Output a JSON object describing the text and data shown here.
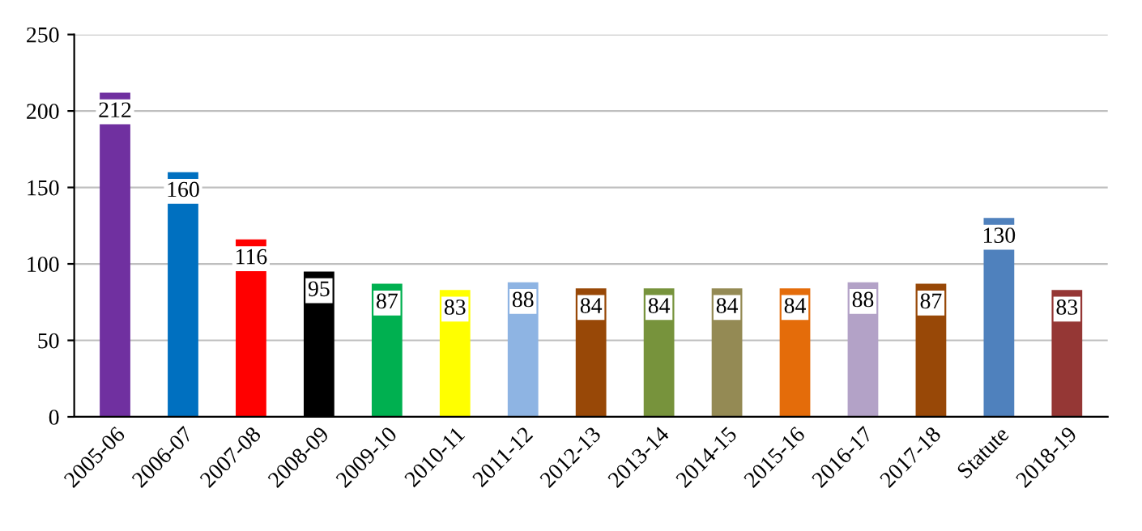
{
  "chart_data": {
    "type": "bar",
    "categories": [
      "2005-06",
      "2006-07",
      "2007-08",
      "2008-09",
      "2009-10",
      "2010-11",
      "2011-12",
      "2012-13",
      "2013-14",
      "2014-15",
      "2015-16",
      "2016-17",
      "2017-18",
      "Statute",
      "2018-19"
    ],
    "values": [
      212,
      160,
      116,
      95,
      87,
      83,
      88,
      84,
      84,
      84,
      84,
      88,
      87,
      130,
      83
    ],
    "colors": [
      "#7030a0",
      "#0070c0",
      "#ff0000",
      "#000000",
      "#00b050",
      "#ffff00",
      "#8eb4e3",
      "#984807",
      "#77933c",
      "#948a54",
      "#e46c0a",
      "#b3a2c7",
      "#984807",
      "#4f81bd",
      "#953735"
    ],
    "ylim": [
      0,
      250
    ],
    "yticks": [
      0,
      50,
      100,
      150,
      200,
      250
    ],
    "grid": "y",
    "data_labels": true
  }
}
